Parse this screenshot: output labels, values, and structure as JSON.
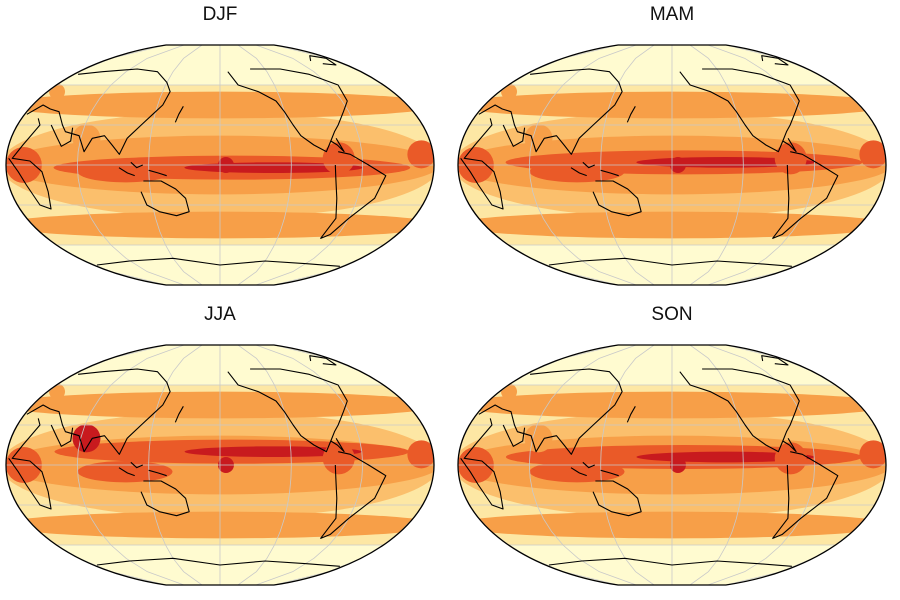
{
  "panels": [
    {
      "title": "DJF",
      "season": "december-january-february"
    },
    {
      "title": "MAM",
      "season": "march-april-may"
    },
    {
      "title": "JJA",
      "season": "june-july-august"
    },
    {
      "title": "SON",
      "season": "september-october-november"
    }
  ],
  "colors": {
    "level_1": "#fffbd0",
    "level_2": "#fde7a4",
    "level_3": "#fbbf6c",
    "level_4": "#f79f48",
    "level_5": "#ea5a28",
    "level_6": "#c81a1e",
    "level_7": "#8e0a1a",
    "land_outline": "#000000",
    "graticule": "#c9c9c9"
  },
  "map": {
    "projection": "robinson",
    "central_longitude": 180,
    "graticule": true,
    "coastlines": true
  }
}
